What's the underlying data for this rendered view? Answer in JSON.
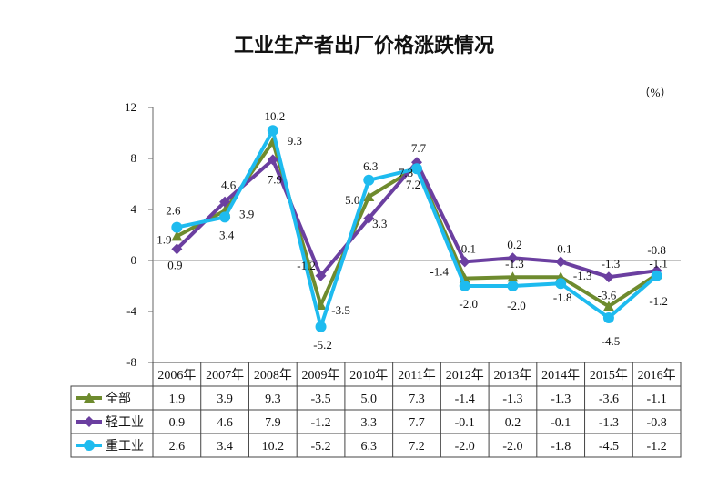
{
  "chart_data": {
    "type": "line",
    "title": "工业生产者出厂价格涨跌情况",
    "unit": "（%）",
    "categories": [
      "2006年",
      "2007年",
      "2008年",
      "2009年",
      "2010年",
      "2011年",
      "2012年",
      "2013年",
      "2014年",
      "2015年",
      "2016年"
    ],
    "ylim": [
      -8,
      12
    ],
    "yticks": [
      -8,
      -4,
      0,
      4,
      8,
      12
    ],
    "grid": false,
    "legend": "table-below",
    "series": [
      {
        "name": "全部",
        "color": "#6E8B2E",
        "marker": "triangle",
        "values": [
          1.9,
          3.9,
          9.3,
          -3.5,
          5.0,
          7.3,
          -1.4,
          -1.3,
          -1.3,
          -3.6,
          -1.1
        ]
      },
      {
        "name": "轻工业",
        "color": "#6B3FA0",
        "marker": "diamond",
        "values": [
          0.9,
          4.6,
          7.9,
          -1.2,
          3.3,
          7.7,
          -0.1,
          0.2,
          -0.1,
          -1.3,
          -0.8
        ]
      },
      {
        "name": "重工业",
        "color": "#1EBBEF",
        "marker": "circle",
        "values": [
          2.6,
          3.4,
          10.2,
          -5.2,
          6.3,
          7.2,
          -2.0,
          -2.0,
          -1.8,
          -4.5,
          -1.2
        ]
      }
    ],
    "point_labels": [
      [
        "1.9",
        "3.9",
        "9.3",
        "-3.5",
        "5.0",
        "7.3",
        "-1.4",
        "-1.3",
        "-1.3",
        "-3.6",
        "-1.1"
      ],
      [
        "0.9",
        "4.6",
        "7.9",
        "-1.2",
        "3.3",
        "7.7",
        "-0.1",
        "0.2",
        "-0.1",
        "-1.3",
        "-0.8"
      ],
      [
        "2.6",
        "3.4",
        "10.2",
        "-5.2",
        "6.3",
        "7.2",
        "-2.0",
        "-2.0",
        "-1.8",
        "-4.5",
        "-1.2"
      ]
    ],
    "table_rows": [
      [
        "1.9",
        "3.9",
        "9.3",
        "-3.5",
        "5.0",
        "7.3",
        "-1.4",
        "-1.3",
        "-1.3",
        "-3.6",
        "-1.1"
      ],
      [
        "0.9",
        "4.6",
        "7.9",
        "-1.2",
        "3.3",
        "7.7",
        "-0.1",
        "0.2",
        "-0.1",
        "-1.3",
        "-0.8"
      ],
      [
        "2.6",
        "3.4",
        "10.2",
        "-5.2",
        "6.3",
        "7.2",
        "-2.0",
        "-2.0",
        "-1.8",
        "-4.5",
        "-1.2"
      ]
    ]
  }
}
